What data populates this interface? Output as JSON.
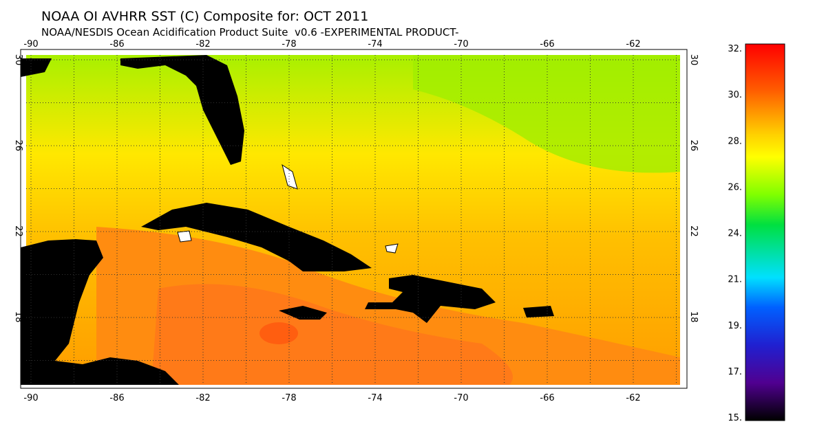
{
  "title": "NOAA OI AVHRR SST (C) Composite for: OCT 2011",
  "subtitle": "NOAA/NESDIS Ocean Acidification Product Suite  v0.6 -EXPERIMENTAL PRODUCT-",
  "map": {
    "longitude_labels": [
      "-90",
      "-86",
      "-82",
      "-78",
      "-74",
      "-70",
      "-66",
      "-62"
    ],
    "latitude_labels": [
      "30",
      "26",
      "22",
      "18"
    ]
  },
  "colorbar": {
    "labels": [
      "32.",
      "30.",
      "28.",
      "26.",
      "24.",
      "21.",
      "19.",
      "17.",
      "15."
    ]
  }
}
